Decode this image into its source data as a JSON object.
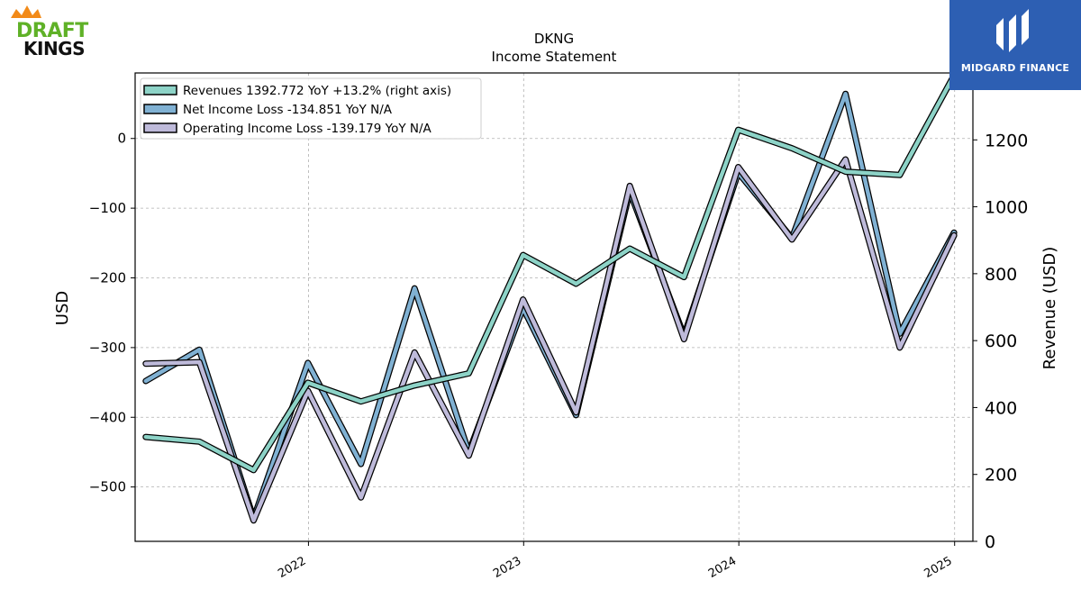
{
  "logos": {
    "left_text_1": "DRAFT",
    "left_text_2": "KINGS",
    "right_text": "MIDGARD FINANCE"
  },
  "chart_data": {
    "type": "line",
    "title": "DKNG",
    "subtitle": "Income Statement",
    "ylabel_left": "USD",
    "ylabel_right": "Revenue (USD)",
    "x_ticks": [
      "2022",
      "2023",
      "2024",
      "2025"
    ],
    "y_left_ticks": [
      0,
      -100,
      -200,
      -300,
      -400,
      -500
    ],
    "y_right_ticks": [
      0,
      200,
      400,
      600,
      800,
      1000,
      1200,
      1400
    ],
    "ylim_left": [
      -578,
      94
    ],
    "ylim_right": [
      0,
      1400
    ],
    "xlim": [
      "2021-03-13",
      "2025-02-01"
    ],
    "grid": true,
    "legend_position": "upper-left",
    "x": [
      "2021-03-31",
      "2021-06-30",
      "2021-09-30",
      "2021-12-31",
      "2022-03-31",
      "2022-06-30",
      "2022-09-30",
      "2022-12-31",
      "2023-03-31",
      "2023-06-30",
      "2023-09-30",
      "2023-12-31",
      "2024-03-31",
      "2024-06-30",
      "2024-09-30",
      "2024-12-31"
    ],
    "series": [
      {
        "name": "Revenues",
        "legend_label": "Revenues  1392.772 YoY +13.2% (right axis)",
        "axis": "right",
        "color": "#8dd3c7",
        "values": [
          312,
          298,
          213,
          474,
          418,
          466,
          502,
          856,
          770,
          875,
          790,
          1230,
          1175,
          1105,
          1095,
          1393
        ]
      },
      {
        "name": "Net Income Loss",
        "legend_label": "Net Income Loss  -134.851 YoY N/A",
        "axis": "left",
        "color": "#80b1d3",
        "values": [
          -348,
          -303,
          -545,
          -322,
          -467,
          -215,
          -450,
          -243,
          -397,
          -76,
          -283,
          -49,
          -143,
          64,
          -280,
          -135
        ]
      },
      {
        "name": "Operating Income Loss",
        "legend_label": "Operating Income Loss  -139.179 YoY N/A",
        "axis": "left",
        "color": "#bebada",
        "values": [
          -323,
          -321,
          -548,
          -362,
          -515,
          -307,
          -455,
          -231,
          -393,
          -68,
          -288,
          -41,
          -145,
          -30,
          -300,
          -139
        ]
      }
    ]
  }
}
